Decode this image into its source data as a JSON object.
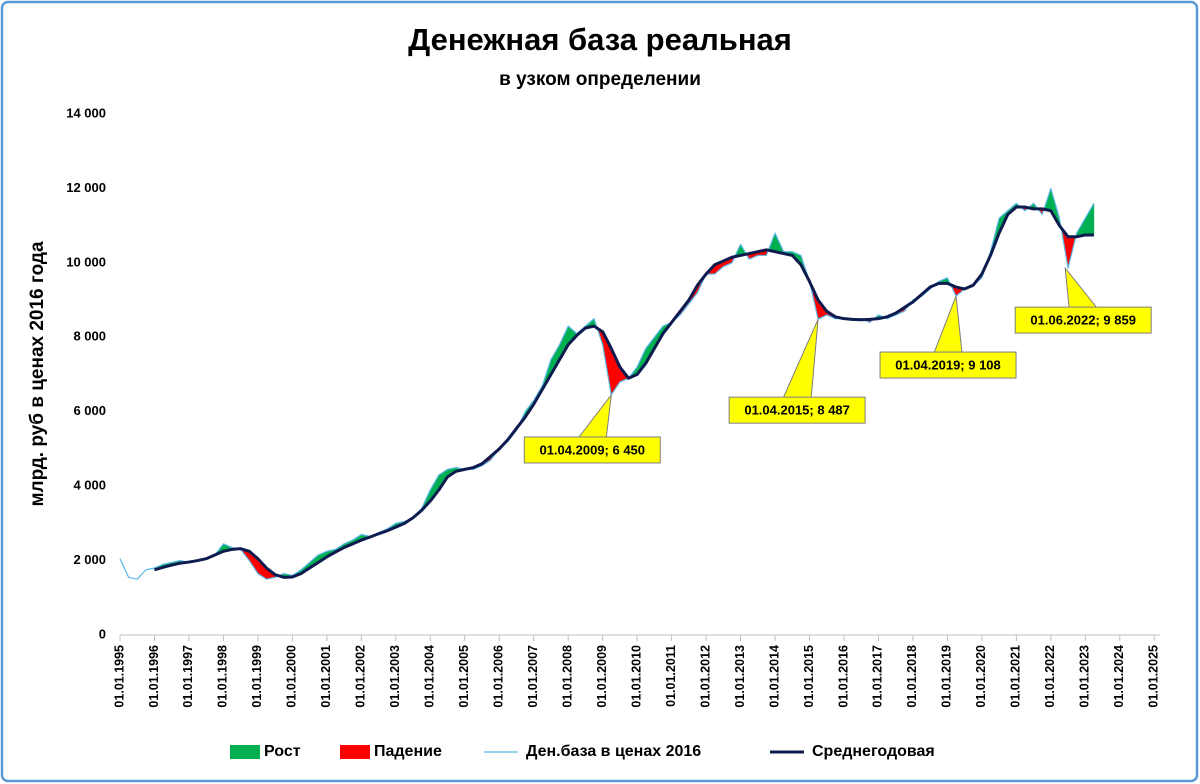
{
  "chart_data": {
    "type": "line",
    "title": "Денежная база реальная",
    "subtitle": "в узком определении",
    "y_label": "млрд. руб  в ценах 2016 года",
    "x": [
      "1995-01-01",
      "1995-04-01",
      "1995-07-01",
      "1995-10-01",
      "1996-01-01",
      "1996-04-01",
      "1996-07-01",
      "1996-10-01",
      "1997-01-01",
      "1997-04-01",
      "1997-07-01",
      "1997-10-01",
      "1998-01-01",
      "1998-04-01",
      "1998-07-01",
      "1998-10-01",
      "1999-01-01",
      "1999-04-01",
      "1999-07-01",
      "1999-10-01",
      "2000-01-01",
      "2000-04-01",
      "2000-07-01",
      "2000-10-01",
      "2001-01-01",
      "2001-04-01",
      "2001-07-01",
      "2001-10-01",
      "2002-01-01",
      "2002-04-01",
      "2002-07-01",
      "2002-10-01",
      "2003-01-01",
      "2003-04-01",
      "2003-07-01",
      "2003-10-01",
      "2004-01-01",
      "2004-04-01",
      "2004-07-01",
      "2004-10-01",
      "2005-01-01",
      "2005-04-01",
      "2005-07-01",
      "2005-10-01",
      "2006-01-01",
      "2006-04-01",
      "2006-07-01",
      "2006-10-01",
      "2007-01-01",
      "2007-04-01",
      "2007-07-01",
      "2007-10-01",
      "2008-01-01",
      "2008-04-01",
      "2008-07-01",
      "2008-10-01",
      "2009-01-01",
      "2009-04-01",
      "2009-07-01",
      "2009-10-01",
      "2010-01-01",
      "2010-04-01",
      "2010-07-01",
      "2010-10-01",
      "2011-01-01",
      "2011-04-01",
      "2011-07-01",
      "2011-10-01",
      "2012-01-01",
      "2012-04-01",
      "2012-07-01",
      "2012-10-01",
      "2013-01-01",
      "2013-04-01",
      "2013-07-01",
      "2013-10-01",
      "2014-01-01",
      "2014-04-01",
      "2014-07-01",
      "2014-10-01",
      "2015-01-01",
      "2015-04-01",
      "2015-07-01",
      "2015-10-01",
      "2016-01-01",
      "2016-04-01",
      "2016-07-01",
      "2016-10-01",
      "2017-01-01",
      "2017-04-01",
      "2017-07-01",
      "2017-10-01",
      "2018-01-01",
      "2018-04-01",
      "2018-07-01",
      "2018-10-01",
      "2019-01-01",
      "2019-04-01",
      "2019-07-01",
      "2019-10-01",
      "2020-01-01",
      "2020-04-01",
      "2020-07-01",
      "2020-10-01",
      "2021-01-01",
      "2021-04-01",
      "2021-07-01",
      "2021-10-01",
      "2022-01-01",
      "2022-04-01",
      "2022-07-01",
      "2022-10-01",
      "2023-01-01",
      "2023-04-01"
    ],
    "series": [
      {
        "name": "Ден.база в ценах 2016",
        "color": "#5bb8e8",
        "width": 1.2,
        "values": [
          2050,
          1550,
          1500,
          1750,
          1800,
          1900,
          1950,
          2000,
          1950,
          2000,
          2050,
          2150,
          2450,
          2350,
          2300,
          2000,
          1650,
          1500,
          1550,
          1650,
          1600,
          1750,
          1950,
          2150,
          2250,
          2300,
          2450,
          2550,
          2700,
          2650,
          2750,
          2850,
          3000,
          3050,
          3150,
          3400,
          3900,
          4300,
          4450,
          4500,
          4450,
          4450,
          4550,
          4700,
          5000,
          5200,
          5500,
          6000,
          6300,
          6700,
          7400,
          7800,
          8300,
          8100,
          8300,
          8500,
          7800,
          6450,
          6800,
          6900,
          7200,
          7700,
          8000,
          8300,
          8400,
          8600,
          8900,
          9200,
          9700,
          9700,
          9900,
          10000,
          10500,
          10100,
          10200,
          10200,
          10800,
          10300,
          10300,
          10200,
          9500,
          8487,
          8600,
          8500,
          8500,
          8450,
          8500,
          8400,
          8600,
          8500,
          8600,
          8700,
          9000,
          9100,
          9300,
          9500,
          9600,
          9108,
          9300,
          9400,
          9600,
          10300,
          11200,
          11400,
          11600,
          11400,
          11600,
          11300,
          12000,
          11200,
          9859,
          10800,
          11200,
          11600
        ]
      },
      {
        "name": "Среднегодовая",
        "color": "#0d1b4f",
        "width": 3,
        "values": [
          null,
          null,
          null,
          null,
          1750,
          1820,
          1880,
          1930,
          1960,
          2000,
          2050,
          2150,
          2250,
          2300,
          2320,
          2250,
          2050,
          1800,
          1620,
          1550,
          1560,
          1650,
          1800,
          1950,
          2100,
          2230,
          2350,
          2450,
          2550,
          2630,
          2720,
          2800,
          2900,
          3000,
          3150,
          3350,
          3600,
          3900,
          4250,
          4400,
          4450,
          4500,
          4600,
          4800,
          5000,
          5250,
          5550,
          5850,
          6200,
          6600,
          7000,
          7400,
          7800,
          8050,
          8250,
          8300,
          8150,
          7700,
          7200,
          6900,
          7000,
          7300,
          7700,
          8100,
          8400,
          8700,
          9000,
          9400,
          9700,
          9950,
          10050,
          10150,
          10200,
          10250,
          10300,
          10350,
          10300,
          10250,
          10200,
          9950,
          9500,
          9000,
          8700,
          8550,
          8500,
          8480,
          8470,
          8480,
          8500,
          8550,
          8650,
          8800,
          8950,
          9150,
          9350,
          9450,
          9450,
          9350,
          9300,
          9400,
          9700,
          10200,
          10800,
          11300,
          11500,
          11500,
          11450,
          11450,
          11400,
          11000,
          10700,
          10700,
          10750,
          10750
        ]
      }
    ],
    "fill_up": {
      "name": "Рост",
      "color": "#00b050"
    },
    "fill_down": {
      "name": "Падение",
      "color": "#ff0000"
    },
    "annotations": [
      {
        "text": "01.04.2009; 6 450",
        "x": "2009-04-01",
        "y": 6450
      },
      {
        "text": "01.04.2015; 8 487",
        "x": "2015-04-01",
        "y": 8487
      },
      {
        "text": "01.04.2019; 9 108",
        "x": "2019-04-01",
        "y": 9108
      },
      {
        "text": "01.06.2022; 9 859",
        "x": "2022-06-01",
        "y": 9859
      }
    ],
    "annotation_color": "#ffff00",
    "xlim": [
      "1995-01-01",
      "2025-03-01"
    ],
    "xticks": [
      {
        "value": "1995-01-01",
        "label": "01.01.1995"
      },
      {
        "value": "1996-01-01",
        "label": "01.01.1996"
      },
      {
        "value": "1997-01-01",
        "label": "01.01.1997"
      },
      {
        "value": "1998-01-01",
        "label": "01.01.1998"
      },
      {
        "value": "1999-01-01",
        "label": "01.01.1999"
      },
      {
        "value": "2000-01-01",
        "label": "01.01.2000"
      },
      {
        "value": "2001-01-01",
        "label": "01.01.2001"
      },
      {
        "value": "2002-01-01",
        "label": "01.01.2002"
      },
      {
        "value": "2003-01-01",
        "label": "01.01.2003"
      },
      {
        "value": "2004-01-01",
        "label": "01.01.2004"
      },
      {
        "value": "2005-01-01",
        "label": "01.01.2005"
      },
      {
        "value": "2006-01-01",
        "label": "01.01.2006"
      },
      {
        "value": "2007-01-01",
        "label": "01.01.2007"
      },
      {
        "value": "2008-01-01",
        "label": "01.01.2008"
      },
      {
        "value": "2009-01-01",
        "label": "01.01.2009"
      },
      {
        "value": "2010-01-01",
        "label": "01.01.2010"
      },
      {
        "value": "2011-01-01",
        "label": "01.01.2011"
      },
      {
        "value": "2012-01-01",
        "label": "01.01.2012"
      },
      {
        "value": "2013-01-01",
        "label": "01.01.2013"
      },
      {
        "value": "2014-01-01",
        "label": "01.01.2014"
      },
      {
        "value": "2015-01-01",
        "label": "01.01.2015"
      },
      {
        "value": "2016-01-01",
        "label": "01.01.2016"
      },
      {
        "value": "2017-01-01",
        "label": "01.01.2017"
      },
      {
        "value": "2018-01-01",
        "label": "01.01.2018"
      },
      {
        "value": "2019-01-01",
        "label": "01.01.2019"
      },
      {
        "value": "2020-01-01",
        "label": "01.01.2020"
      },
      {
        "value": "2021-01-01",
        "label": "01.01.2021"
      },
      {
        "value": "2022-01-01",
        "label": "01.01.2022"
      },
      {
        "value": "2023-01-01",
        "label": "01.01.2023"
      },
      {
        "value": "2024-01-01",
        "label": "01.01.2024"
      },
      {
        "value": "2025-01-01",
        "label": "01.01.2025"
      }
    ],
    "ylim": [
      0,
      14000
    ],
    "yticks": [
      0,
      {
        "value": 2000,
        "label": "2 000"
      },
      {
        "value": 4000,
        "label": "4 000"
      },
      {
        "value": 6000,
        "label": "6 000"
      },
      {
        "value": 8000,
        "label": "8 000"
      },
      {
        "value": 10000,
        "label": "10 000"
      },
      {
        "value": 12000,
        "label": "12 000"
      },
      {
        "value": 14000,
        "label": "14 000"
      }
    ],
    "grid": false,
    "legend": "bottom"
  }
}
